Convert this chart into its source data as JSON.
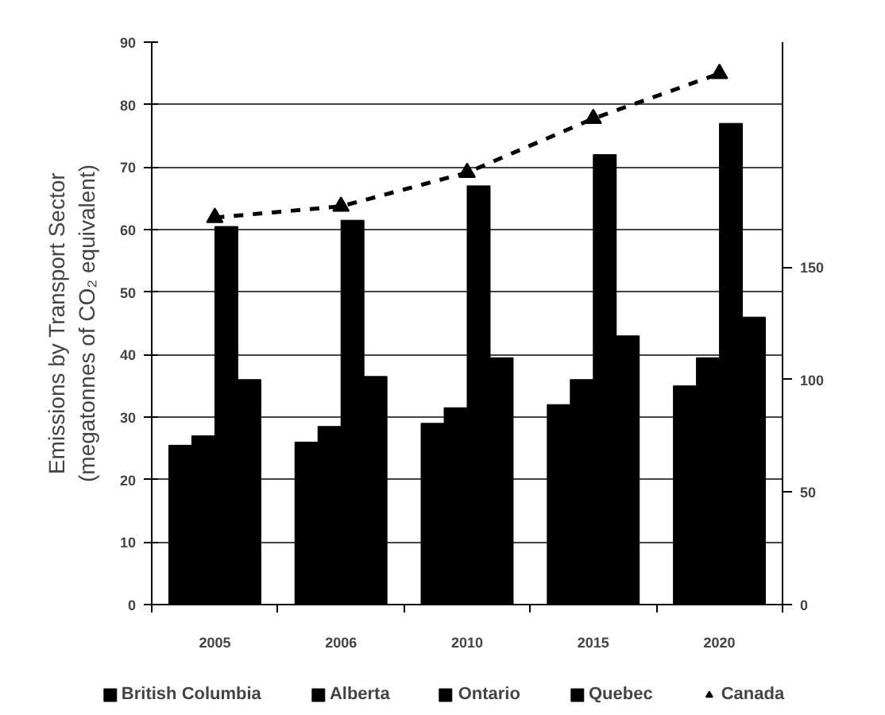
{
  "chart_data": {
    "type": "bar",
    "ylabel": "Emissions by Transport Sector\n(megatonnes of CO₂ equivalent)",
    "categories": [
      "2005",
      "2006",
      "2010",
      "2015",
      "2020"
    ],
    "series": [
      {
        "name": "British Columbia",
        "color": "#000000",
        "values": [
          25.5,
          26,
          29,
          32,
          35
        ]
      },
      {
        "name": "Alberta",
        "color": "#000000",
        "values": [
          27,
          28.5,
          31.5,
          36,
          39.5
        ]
      },
      {
        "name": "Ontario",
        "color": "#000000",
        "values": [
          60.5,
          61.5,
          67,
          72,
          77
        ]
      },
      {
        "name": "Quebec",
        "color": "#000000",
        "values": [
          36,
          36.5,
          39.5,
          43,
          46
        ]
      },
      {
        "name": "Canada",
        "type": "line",
        "axis": "y2",
        "color": "#000000",
        "marker": "triangle",
        "line_style": "dashed",
        "values": [
          172,
          177,
          192,
          216,
          236
        ]
      }
    ],
    "ylim": [
      0,
      90
    ],
    "yticks": [
      0,
      10,
      20,
      30,
      40,
      50,
      60,
      70,
      80,
      90
    ],
    "y2lim": [
      0,
      250
    ],
    "y2ticks": [
      0,
      50,
      100,
      150
    ],
    "grid": "y",
    "legend": "bottom"
  }
}
